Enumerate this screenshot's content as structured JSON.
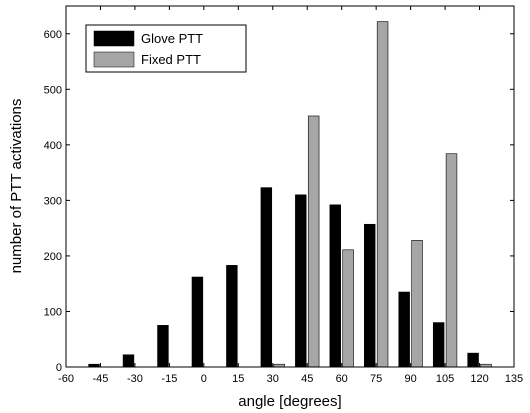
{
  "chart_data": {
    "type": "bar",
    "title": "",
    "xlabel": "angle [degrees]",
    "ylabel": "number of PTT activations",
    "xlim": [
      -60,
      135
    ],
    "ylim": [
      0,
      650
    ],
    "x": [
      -45,
      -30,
      -15,
      0,
      15,
      30,
      45,
      60,
      75,
      90,
      105,
      120
    ],
    "x_ticks": [
      -60,
      -45,
      -30,
      -15,
      0,
      15,
      30,
      45,
      60,
      75,
      90,
      105,
      120,
      135
    ],
    "y_ticks": [
      0,
      100,
      200,
      300,
      400,
      500,
      600
    ],
    "grid": false,
    "legend_position": "top-left",
    "series": [
      {
        "name": "Glove PTT",
        "color": "#000000",
        "values": [
          5,
          22,
          75,
          162,
          183,
          323,
          310,
          292,
          257,
          135,
          80,
          25
        ]
      },
      {
        "name": "Fixed PTT",
        "color": "#a6a6a6",
        "values": [
          0,
          0,
          0,
          0,
          0,
          5,
          452,
          211,
          622,
          228,
          384,
          5
        ]
      }
    ]
  }
}
